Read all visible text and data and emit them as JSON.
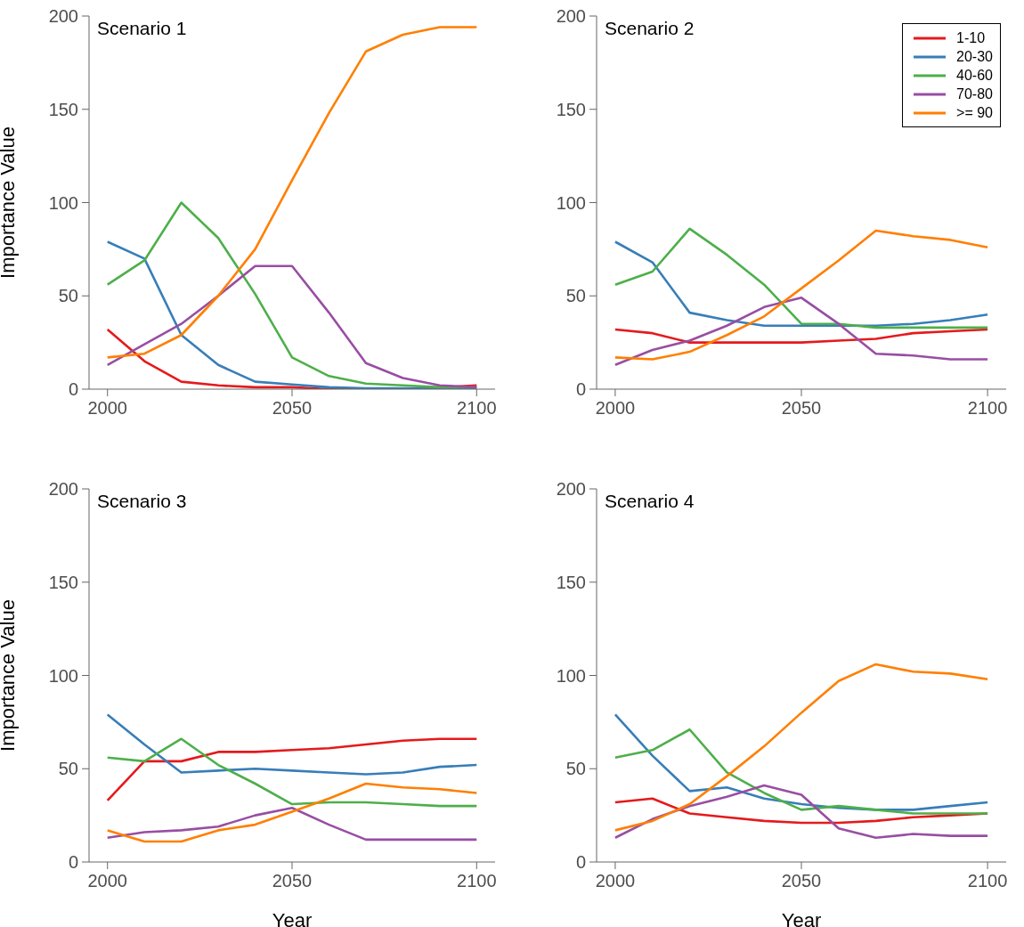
{
  "chart_data": [
    {
      "type": "line",
      "title": "Scenario 1",
      "ylabel": "Importance Value",
      "x": [
        2000,
        2010,
        2020,
        2030,
        2040,
        2050,
        2060,
        2070,
        2080,
        2090,
        2100
      ],
      "xlim": [
        1995,
        2105
      ],
      "xticks": [
        2000,
        2050,
        2100
      ],
      "ylim": [
        0,
        200
      ],
      "yticks": [
        0,
        50,
        100,
        150,
        200
      ],
      "grid": false,
      "legend": false,
      "series": [
        {
          "color": "#e41a1c",
          "values": [
            32,
            15,
            4,
            2,
            1,
            1,
            0,
            0,
            0,
            1,
            2
          ]
        },
        {
          "color": "#377eb8",
          "values": [
            79,
            70,
            29,
            13,
            4,
            2.5,
            1,
            0.5,
            0.5,
            0.5,
            0.5
          ]
        },
        {
          "color": "#4daf4a",
          "values": [
            56,
            69,
            100,
            81,
            51,
            17,
            7,
            3,
            2,
            1,
            1
          ]
        },
        {
          "color": "#984ea3",
          "values": [
            13,
            24,
            35,
            50,
            66,
            66,
            41,
            14,
            6,
            2,
            1
          ]
        },
        {
          "color": "#ff7f00",
          "values": [
            17,
            19,
            29,
            50,
            75,
            112,
            148,
            181,
            190,
            194,
            194
          ]
        }
      ]
    },
    {
      "type": "line",
      "title": "Scenario 2",
      "x": [
        2000,
        2010,
        2020,
        2030,
        2040,
        2050,
        2060,
        2070,
        2080,
        2090,
        2100
      ],
      "xlim": [
        1995,
        2105
      ],
      "xticks": [
        2000,
        2050,
        2100
      ],
      "ylim": [
        0,
        200
      ],
      "yticks": [
        0,
        50,
        100,
        150,
        200
      ],
      "grid": false,
      "legend": "top right",
      "series": [
        {
          "name": "1-10",
          "color": "#e41a1c",
          "values": [
            32,
            30,
            25,
            25,
            25,
            25,
            26,
            27,
            30,
            31,
            32
          ]
        },
        {
          "name": "20-30",
          "color": "#377eb8",
          "values": [
            79,
            68,
            41,
            37,
            34,
            34,
            34,
            34,
            35,
            37,
            40
          ]
        },
        {
          "name": "40-60",
          "color": "#4daf4a",
          "values": [
            56,
            63,
            86,
            72,
            56,
            35,
            35,
            33,
            33,
            33,
            33
          ]
        },
        {
          "name": "70-80",
          "color": "#984ea3",
          "values": [
            13,
            21,
            26,
            34,
            44,
            49,
            35,
            19,
            18,
            16,
            16
          ]
        },
        {
          "name": ">= 90",
          "color": "#ff7f00",
          "values": [
            17,
            16,
            20,
            29,
            39,
            54,
            69,
            85,
            82,
            80,
            76
          ]
        }
      ]
    },
    {
      "type": "line",
      "title": "Scenario 3",
      "xlabel": "Year",
      "ylabel": "Importance Value",
      "x": [
        2000,
        2010,
        2020,
        2030,
        2040,
        2050,
        2060,
        2070,
        2080,
        2090,
        2100
      ],
      "xlim": [
        1995,
        2105
      ],
      "xticks": [
        2000,
        2050,
        2100
      ],
      "ylim": [
        0,
        200
      ],
      "yticks": [
        0,
        50,
        100,
        150,
        200
      ],
      "grid": false,
      "legend": false,
      "series": [
        {
          "color": "#e41a1c",
          "values": [
            33,
            54,
            54,
            59,
            59,
            60,
            61,
            63,
            65,
            66,
            66
          ]
        },
        {
          "color": "#377eb8",
          "values": [
            79,
            63,
            48,
            49,
            50,
            49,
            48,
            47,
            48,
            51,
            52
          ]
        },
        {
          "color": "#4daf4a",
          "values": [
            56,
            54,
            66,
            52,
            42,
            31,
            32,
            32,
            31,
            30,
            30
          ]
        },
        {
          "color": "#984ea3",
          "values": [
            13,
            16,
            17,
            19,
            25,
            29,
            20,
            12,
            12,
            12,
            12
          ]
        },
        {
          "color": "#ff7f00",
          "values": [
            17,
            11,
            11,
            17,
            20,
            27,
            34,
            42,
            40,
            39,
            37
          ]
        }
      ]
    },
    {
      "type": "line",
      "title": "Scenario 4",
      "xlabel": "Year",
      "x": [
        2000,
        2010,
        2020,
        2030,
        2040,
        2050,
        2060,
        2070,
        2080,
        2090,
        2100
      ],
      "xlim": [
        1995,
        2105
      ],
      "xticks": [
        2000,
        2050,
        2100
      ],
      "ylim": [
        0,
        200
      ],
      "yticks": [
        0,
        50,
        100,
        150,
        200
      ],
      "grid": false,
      "legend": false,
      "series": [
        {
          "color": "#e41a1c",
          "values": [
            32,
            34,
            26,
            24,
            22,
            21,
            21,
            22,
            24,
            25,
            26
          ]
        },
        {
          "color": "#377eb8",
          "values": [
            79,
            57,
            38,
            40,
            34,
            31,
            29,
            28,
            28,
            30,
            32
          ]
        },
        {
          "color": "#4daf4a",
          "values": [
            56,
            60,
            71,
            48,
            37,
            28,
            30,
            28,
            26,
            26,
            26
          ]
        },
        {
          "color": "#984ea3",
          "values": [
            13,
            23,
            30,
            35,
            41,
            36,
            18,
            13,
            15,
            14,
            14
          ]
        },
        {
          "color": "#ff7f00",
          "values": [
            17,
            22,
            31,
            46,
            62,
            80,
            97,
            106,
            102,
            101,
            98
          ]
        }
      ]
    }
  ]
}
